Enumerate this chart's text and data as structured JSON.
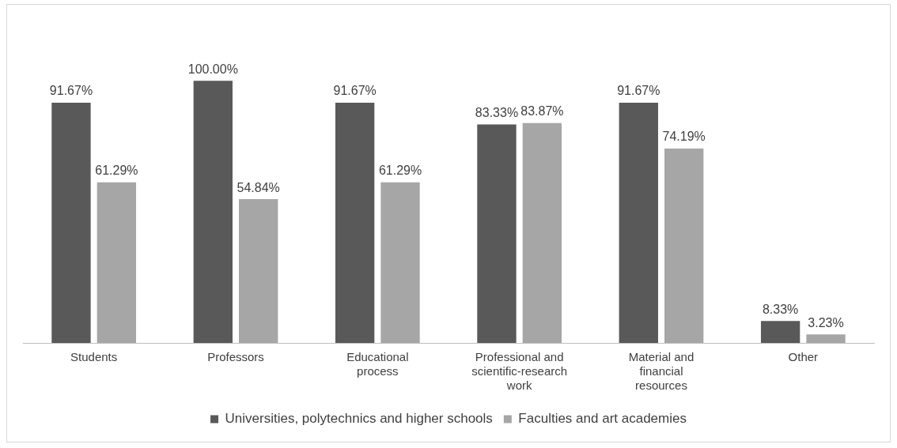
{
  "chart_data": {
    "type": "bar",
    "categories": [
      "Students",
      "Professors",
      "Educational process",
      "Professional and scientific-research work",
      "Material and financial resources",
      "Other"
    ],
    "series": [
      {
        "name": "Universities, polytechnics and higher schools",
        "color": "#595959",
        "values": [
          91.67,
          100.0,
          91.67,
          83.33,
          91.67,
          8.33
        ],
        "value_labels": [
          "91.67%",
          "100.00%",
          "91.67%",
          "83.33%",
          "91.67%",
          "8.33%"
        ]
      },
      {
        "name": "Faculties and art academies",
        "color": "#a6a6a6",
        "values": [
          61.29,
          54.84,
          61.29,
          83.87,
          74.19,
          3.23
        ],
        "value_labels": [
          "61.29%",
          "54.84%",
          "61.29%",
          "83.87%",
          "74.19%",
          "3.23%"
        ]
      }
    ],
    "grid": false,
    "legend": "bottom"
  }
}
